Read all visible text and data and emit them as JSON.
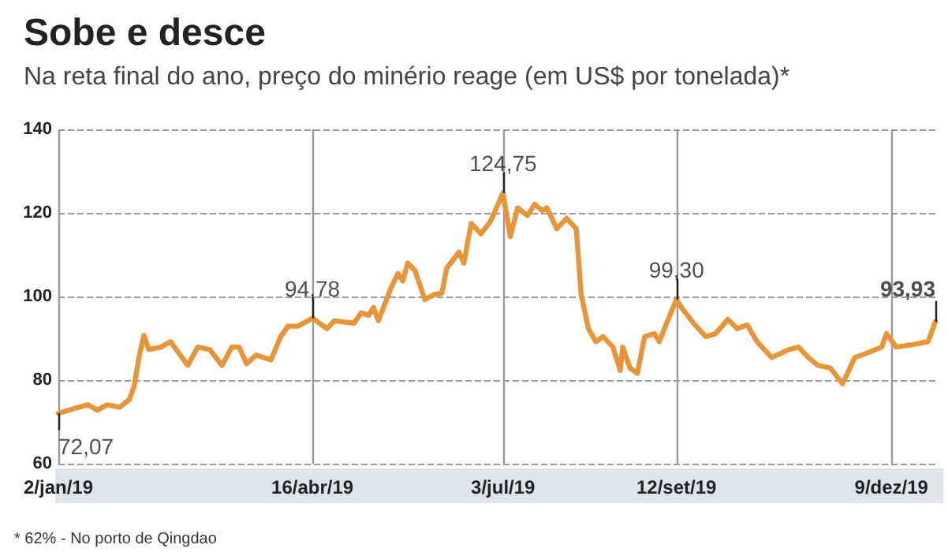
{
  "chart_data": {
    "type": "line",
    "title": "Sobe e desce",
    "subtitle": "Na reta final do ano, preço do minério reage (em US$ por tonelada)*",
    "x": [
      "2019-01-02",
      "2019-01-08",
      "2019-01-14",
      "2019-01-18",
      "2019-01-22",
      "2019-01-27",
      "2019-01-31",
      "2019-02-02",
      "2019-02-04",
      "2019-02-06",
      "2019-02-08",
      "2019-02-13",
      "2019-02-17",
      "2019-02-20",
      "2019-02-24",
      "2019-02-28",
      "2019-03-05",
      "2019-03-10",
      "2019-03-14",
      "2019-03-17",
      "2019-03-20",
      "2019-03-24",
      "2019-03-30",
      "2019-04-03",
      "2019-04-06",
      "2019-04-10",
      "2019-04-16",
      "2019-04-22",
      "2019-04-25",
      "2019-05-03",
      "2019-05-06",
      "2019-05-09",
      "2019-05-11",
      "2019-05-13",
      "2019-05-18",
      "2019-05-21",
      "2019-05-23",
      "2019-05-25",
      "2019-05-28",
      "2019-06-01",
      "2019-06-05",
      "2019-06-08",
      "2019-06-10",
      "2019-06-15",
      "2019-06-17",
      "2019-06-20",
      "2019-06-24",
      "2019-06-28",
      "2019-07-03",
      "2019-07-06",
      "2019-07-09",
      "2019-07-13",
      "2019-07-16",
      "2019-07-19",
      "2019-07-21",
      "2019-07-25",
      "2019-07-29",
      "2019-08-02",
      "2019-08-04",
      "2019-08-07",
      "2019-08-10",
      "2019-08-13",
      "2019-08-17",
      "2019-08-20",
      "2019-08-21",
      "2019-08-24",
      "2019-08-27",
      "2019-08-30",
      "2019-09-03",
      "2019-09-05",
      "2019-09-08",
      "2019-09-12",
      "2019-09-14",
      "2019-09-19",
      "2019-09-24",
      "2019-09-28",
      "2019-10-03",
      "2019-10-07",
      "2019-10-11",
      "2019-10-15",
      "2019-10-21",
      "2019-10-28",
      "2019-11-01",
      "2019-11-05",
      "2019-11-09",
      "2019-11-14",
      "2019-11-19",
      "2019-11-24",
      "2019-11-30",
      "2019-12-05",
      "2019-12-07",
      "2019-12-11",
      "2019-12-18",
      "2019-12-24",
      "2019-12-27"
    ],
    "series": [
      {
        "color": "#e8953a",
        "values": [
          72.07,
          73.1,
          74.1,
          72.8,
          74.1,
          73.5,
          75.3,
          78.5,
          85.4,
          90.7,
          87.3,
          87.9,
          89.2,
          86.7,
          83.5,
          87.9,
          87.3,
          83.5,
          87.9,
          87.9,
          83.9,
          86.0,
          84.8,
          90.4,
          92.9,
          92.9,
          94.78,
          92.3,
          94.2,
          93.6,
          96.1,
          95.5,
          97.4,
          94.2,
          101.8,
          105.5,
          103.7,
          108.0,
          106.2,
          99.3,
          100.5,
          100.8,
          106.8,
          110.6,
          108.0,
          117.5,
          115.0,
          118.1,
          124.75,
          114.3,
          121.2,
          119.4,
          122.1,
          120.6,
          121.2,
          116.2,
          118.7,
          116.2,
          100.5,
          92.3,
          89.2,
          90.4,
          87.9,
          82.3,
          87.9,
          82.9,
          81.6,
          90.4,
          91.1,
          89.2,
          93.6,
          99.3,
          97.4,
          93.6,
          90.4,
          91.1,
          94.5,
          92.3,
          93.2,
          89.2,
          85.4,
          87.3,
          87.9,
          85.4,
          83.5,
          82.9,
          79.1,
          85.4,
          86.7,
          87.9,
          91.1,
          87.9,
          88.5,
          89.2,
          93.93
        ]
      }
    ],
    "xlim": [
      "2019-01-02",
      "2019-12-27"
    ],
    "xticks": [
      {
        "value": "2019-01-02",
        "label": "2/jan/19"
      },
      {
        "value": "2019-04-16",
        "label": "16/abr/19"
      },
      {
        "value": "2019-07-03",
        "label": "3/jul/19"
      },
      {
        "value": "2019-09-12",
        "label": "12/set/19"
      },
      {
        "value": "2019-12-09",
        "label": "9/dez/19"
      }
    ],
    "ylim": [
      60,
      140
    ],
    "yticks": [
      60,
      80,
      100,
      120,
      140
    ],
    "grid": true,
    "marker": "none",
    "line_style": "solid",
    "annotations": [
      {
        "text": "72,07",
        "x": "2019-01-02",
        "y": 72.07
      },
      {
        "text": "94,78",
        "x": "2019-04-16",
        "y": 94.78
      },
      {
        "text": "124,75",
        "x": "2019-07-03",
        "y": 124.75
      },
      {
        "text": "99,30",
        "x": "2019-09-12",
        "y": 99.3
      },
      {
        "text": "93,93",
        "x": "2019-12-27",
        "y": 93.93
      },
      "* 62% - No porto de Qingdao"
    ]
  }
}
